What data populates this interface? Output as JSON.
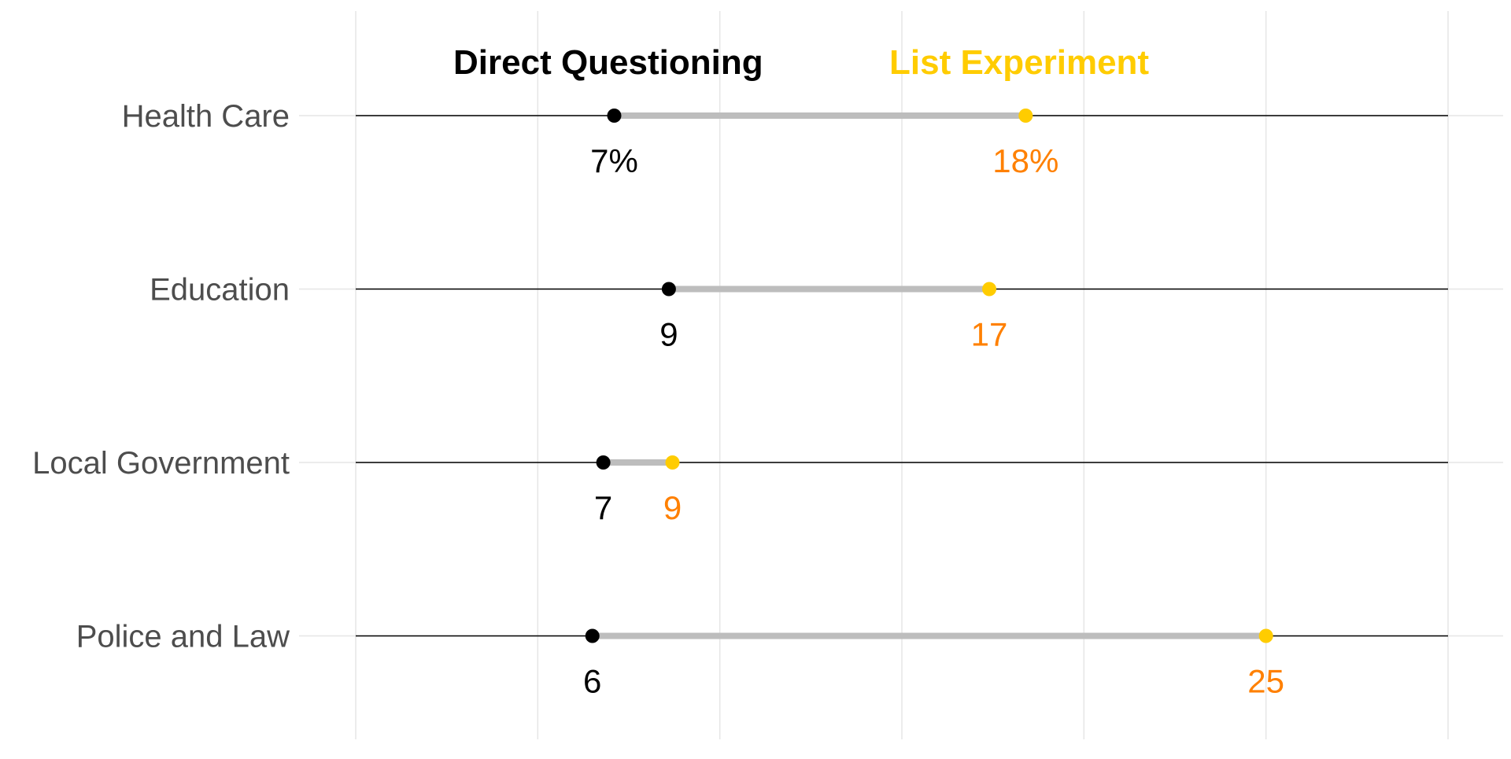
{
  "chart_data": {
    "type": "dumbbell",
    "legend": {
      "placement": "top",
      "entries": [
        {
          "label": "Direct Questioning",
          "color": "#000000"
        },
        {
          "label": "List Experiment",
          "color": "#FFCC00"
        }
      ]
    },
    "categories": [
      "Health Care",
      "Education",
      "Local Government",
      "Police and Law"
    ],
    "series": [
      {
        "name": "Direct Questioning",
        "color": "#000000",
        "label_color": "#000000",
        "values": [
          7.1,
          8.6,
          6.8,
          6.5
        ],
        "labels": [
          "7%",
          "9",
          "7",
          "6"
        ]
      },
      {
        "name": "List Experiment",
        "color": "#FFCC00",
        "label_color": "#FF8000",
        "values": [
          18.4,
          17.4,
          8.7,
          25.0
        ],
        "labels": [
          "18%",
          "17",
          "9",
          "25"
        ]
      }
    ],
    "xlim": [
      0,
      30
    ],
    "x_gridlines": [
      0,
      5,
      10,
      15,
      20,
      25,
      30
    ],
    "x_tick_labels_shown": false,
    "grid": true,
    "segment_color": "#BDBDBD",
    "grid_color": "#E6E6E6",
    "baseline_color": "#000000",
    "title": "",
    "xlabel": "",
    "ylabel": ""
  }
}
